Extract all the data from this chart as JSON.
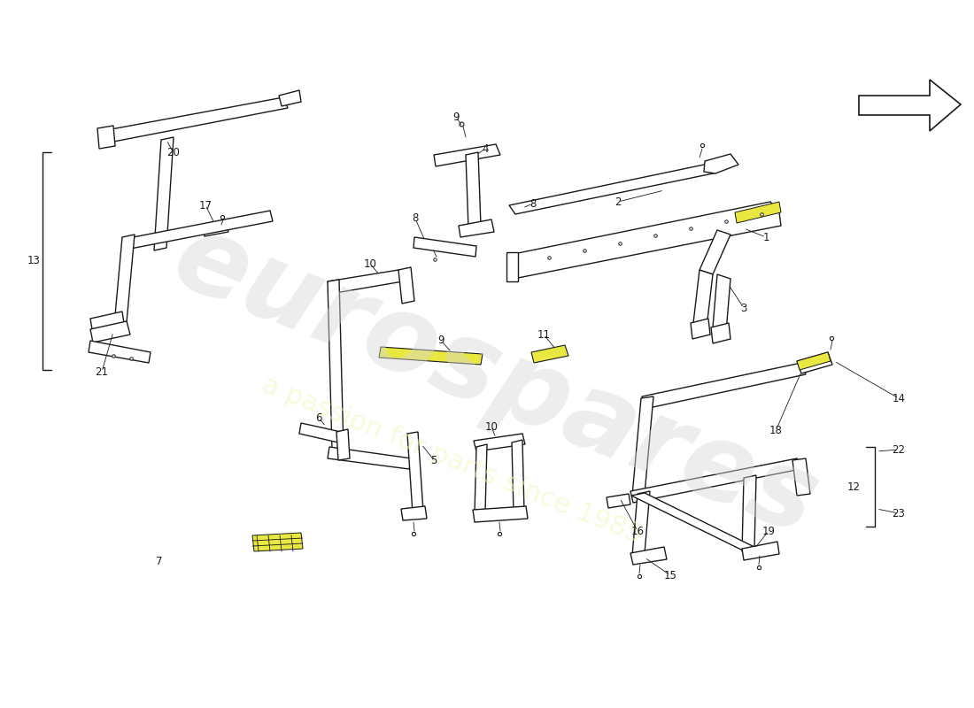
{
  "bg_color": "#ffffff",
  "line_color": "#1a1a1a",
  "lw": 1.0,
  "tlw": 0.6,
  "yellow": "#e8e840",
  "light_yellow": "#f0f060"
}
